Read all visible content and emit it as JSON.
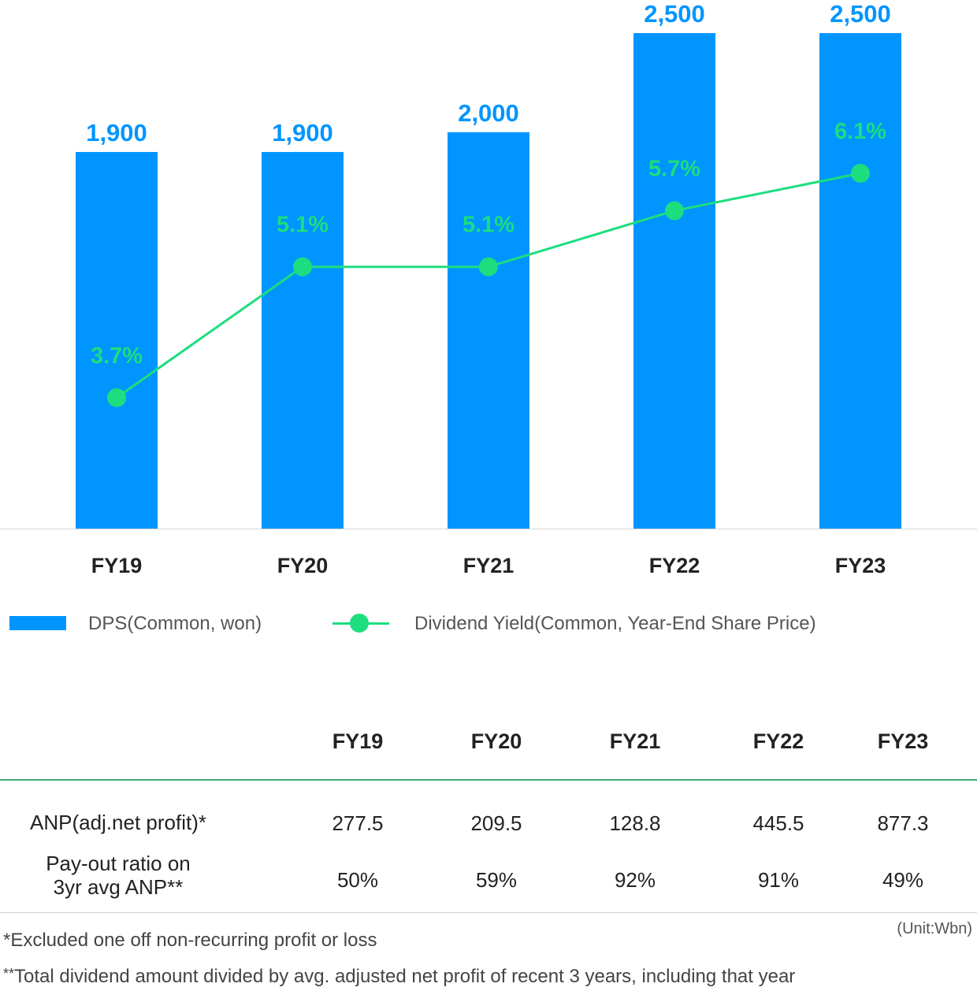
{
  "chart_data": {
    "type": "bar",
    "categories": [
      "FY19",
      "FY20",
      "FY21",
      "FY22",
      "FY23"
    ],
    "series": [
      {
        "name": "DPS(Common, won)",
        "type": "bar",
        "values": [
          1900,
          1900,
          2000,
          2500,
          2500
        ],
        "labels": [
          "1,900",
          "1,900",
          "2,000",
          "2,500",
          "2,500"
        ],
        "color": "#0095ff"
      },
      {
        "name": "Dividend Yield(Common, Year-End Share Price)",
        "type": "line",
        "values": [
          3.7,
          5.1,
          5.1,
          5.7,
          6.1
        ],
        "labels": [
          "3.7%",
          "5.1%",
          "5.1%",
          "5.7%",
          "6.1%"
        ],
        "color": "#1cde7e"
      }
    ],
    "bar_ylim": [
      0,
      2500
    ],
    "line_ylim": [
      2.3,
      7.6
    ],
    "grid": false,
    "legend": "bottom"
  },
  "table": {
    "headers": [
      "FY19",
      "FY20",
      "FY21",
      "FY22",
      "FY23"
    ],
    "rows": [
      {
        "label": "ANP(adj.net profit)*",
        "values": [
          "277.5",
          "209.5",
          "128.8",
          "445.5",
          "877.3"
        ]
      },
      {
        "label_line1": "Pay-out ratio on",
        "label_line2": "3yr avg ANP**",
        "values": [
          "50%",
          "59%",
          "92%",
          "91%",
          "49%"
        ]
      }
    ],
    "unit": "(Unit:Wbn)"
  },
  "notes": {
    "note1": "*Excluded one off non-recurring profit or loss",
    "note2_mark": "**",
    "note2_text": "Total dividend amount divided by avg. adjusted net profit of recent 3 years, including that year"
  }
}
